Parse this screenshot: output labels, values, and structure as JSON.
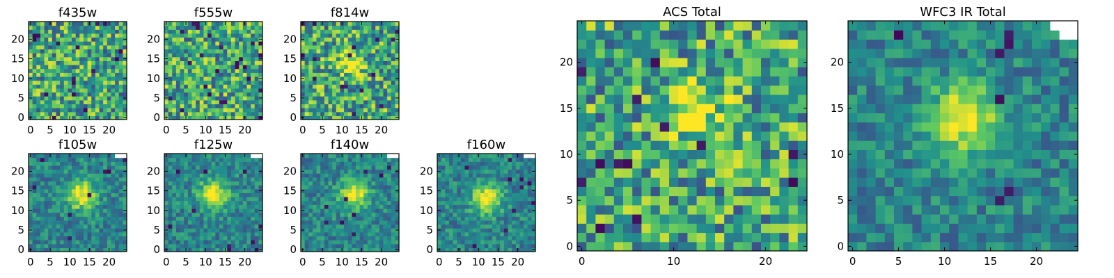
{
  "figure": {
    "background": "#ffffff"
  },
  "colormap": {
    "name": "viridis",
    "stops": [
      "#440154",
      "#3b528b",
      "#21918c",
      "#5ec962",
      "#fde725"
    ]
  },
  "chart_data": [
    {
      "id": "f435w",
      "type": "heatmap",
      "title": "f435w",
      "grid_size": 25,
      "xlim": [
        0,
        24
      ],
      "ylim": [
        0,
        24
      ],
      "xticks": [
        0,
        5,
        10,
        15,
        20
      ],
      "yticks": [
        0,
        5,
        10,
        15,
        20
      ],
      "source_peak": null,
      "masked_corner": false
    },
    {
      "id": "f555w",
      "type": "heatmap",
      "title": "f555w",
      "grid_size": 25,
      "xlim": [
        0,
        24
      ],
      "ylim": [
        0,
        24
      ],
      "xticks": [
        0,
        5,
        10,
        15,
        20
      ],
      "yticks": [
        0,
        5,
        10,
        15,
        20
      ],
      "source_peak": null,
      "masked_corner": false
    },
    {
      "id": "f814w",
      "type": "heatmap",
      "title": "f814w",
      "grid_size": 25,
      "xlim": [
        0,
        24
      ],
      "ylim": [
        0,
        24
      ],
      "xticks": [
        0,
        5,
        10,
        15,
        20
      ],
      "yticks": [
        0,
        5,
        10,
        15,
        20
      ],
      "source_peak": [
        12,
        14
      ],
      "masked_corner": false
    },
    {
      "id": "f105w",
      "type": "heatmap",
      "title": "f105w",
      "grid_size": 25,
      "xlim": [
        0,
        24
      ],
      "ylim": [
        0,
        24
      ],
      "xticks": [
        0,
        5,
        10,
        15,
        20
      ],
      "yticks": [
        0,
        5,
        10,
        15,
        20
      ],
      "source_peak": [
        13,
        14
      ],
      "masked_corner": true
    },
    {
      "id": "f125w",
      "type": "heatmap",
      "title": "f125w",
      "grid_size": 25,
      "xlim": [
        0,
        24
      ],
      "ylim": [
        0,
        24
      ],
      "xticks": [
        0,
        5,
        10,
        15,
        20
      ],
      "yticks": [
        0,
        5,
        10,
        15,
        20
      ],
      "source_peak": [
        12,
        14
      ],
      "masked_corner": true
    },
    {
      "id": "f140w",
      "type": "heatmap",
      "title": "f140w",
      "grid_size": 25,
      "xlim": [
        0,
        24
      ],
      "ylim": [
        0,
        24
      ],
      "xticks": [
        0,
        5,
        10,
        15,
        20
      ],
      "yticks": [
        0,
        5,
        10,
        15,
        20
      ],
      "source_peak": [
        13,
        14
      ],
      "masked_corner": true
    },
    {
      "id": "f160w",
      "type": "heatmap",
      "title": "f160w",
      "grid_size": 25,
      "xlim": [
        0,
        24
      ],
      "ylim": [
        0,
        24
      ],
      "xticks": [
        0,
        5,
        10,
        15,
        20
      ],
      "yticks": [
        0,
        5,
        10,
        15,
        20
      ],
      "source_peak": [
        12,
        13
      ],
      "masked_corner": true
    },
    {
      "id": "acs_total",
      "type": "heatmap",
      "title": "ACS Total",
      "grid_size": 25,
      "xlim": [
        0,
        24
      ],
      "ylim": [
        0,
        24
      ],
      "xticks": [
        0,
        10,
        20
      ],
      "yticks": [
        0,
        5,
        10,
        15,
        20
      ],
      "source_peak": [
        12,
        15
      ],
      "masked_corner": false
    },
    {
      "id": "wfc3_ir_total",
      "type": "heatmap",
      "title": "WFC3 IR Total",
      "grid_size": 25,
      "xlim": [
        0,
        24
      ],
      "ylim": [
        0,
        24
      ],
      "xticks": [
        0,
        5,
        10,
        15,
        20
      ],
      "yticks": [
        0,
        5,
        10,
        15,
        20
      ],
      "source_peak": [
        12,
        14
      ],
      "masked_corner": true
    }
  ]
}
